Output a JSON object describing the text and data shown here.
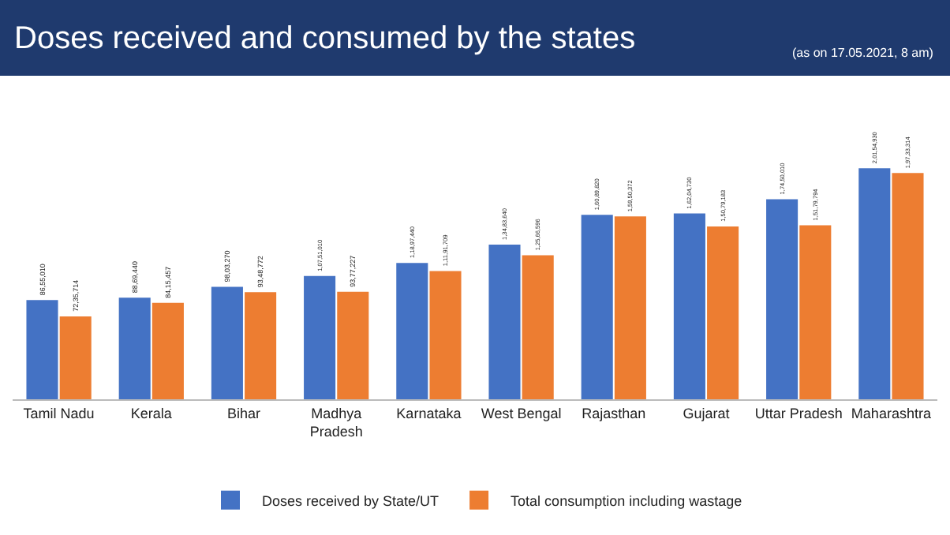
{
  "chart_data": {
    "type": "bar",
    "title": "Doses received and consumed by the states",
    "annotations": [
      "(as on 17.05.2021, 8 am)"
    ],
    "categories": [
      "Tamil Nadu",
      "Kerala",
      "Bihar",
      "Madhya Pradesh",
      "Karnataka",
      "West Bengal",
      "Rajasthan",
      "Gujarat",
      "Uttar Pradesh",
      "Maharashtra"
    ],
    "series": [
      {
        "name": "Doses received by State/UT",
        "color": "#4472c4",
        "values": [
          8655010,
          8869440,
          9803270,
          10751010,
          11897440,
          13483640,
          16089820,
          16204730,
          17450010,
          20154930
        ],
        "value_labels": [
          "86,55,010",
          "88,69,440",
          "98,03,270",
          "1,07,51,010",
          "1,18,97,440",
          "1,34,83,640",
          "1,60,89,820",
          "1,62,04,730",
          "1,74,50,010",
          "2,01,54,930"
        ]
      },
      {
        "name": "Total consumption including wastage",
        "color": "#ed7d31",
        "values": [
          7235714,
          8415457,
          9348772,
          9377227,
          11191709,
          12566596,
          15950372,
          15079183,
          15179794,
          19733314
        ],
        "value_labels": [
          "72,35,714",
          "84,15,457",
          "93,48,772",
          "93,77,227",
          "1,11,91,709",
          "1,25,66,596",
          "1,59,50,372",
          "1,50,79,183",
          "1,51,79,794",
          "1,97,33,314"
        ]
      }
    ],
    "legend": "bottom",
    "grid": false
  }
}
